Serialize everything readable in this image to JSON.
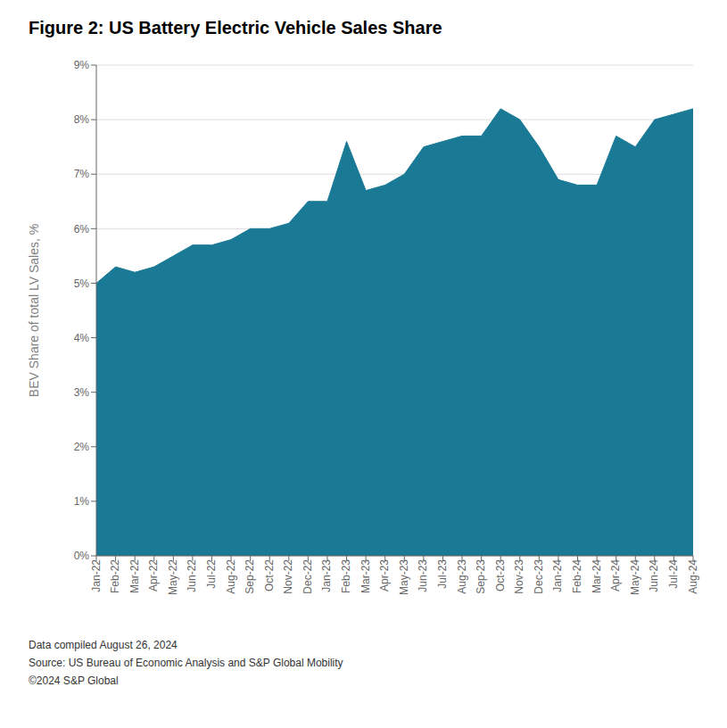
{
  "chart_data": {
    "type": "area",
    "title": "Figure 2: US Battery Electric Vehicle Sales Share",
    "ylabel": "BEV Share of total LV Sales, %",
    "annotations": [
      "Data compiled August 26, 2024",
      "Source: US Bureau of Economic Analysis and S&P Global Mobility",
      "©2024 S&P Global"
    ],
    "categories": [
      "Jan-22",
      "Feb-22",
      "Mar-22",
      "Apr-22",
      "May-22",
      "Jun-22",
      "Jul-22",
      "Aug-22",
      "Sep-22",
      "Oct-22",
      "Nov-22",
      "Dec-22",
      "Jan-23",
      "Feb-23",
      "Mar-23",
      "Apr-23",
      "May-23",
      "Jun-23",
      "Jul-23",
      "Aug-23",
      "Sep-23",
      "Oct-23",
      "Nov-23",
      "Dec-23",
      "Jan-24",
      "Feb-24",
      "Mar-24",
      "Apr-24",
      "May-24",
      "Jun-24",
      "Jul-24",
      "Aug-24"
    ],
    "values": [
      5.0,
      5.3,
      5.2,
      5.3,
      5.5,
      5.7,
      5.7,
      5.8,
      6.0,
      6.0,
      6.1,
      6.5,
      6.5,
      7.6,
      6.7,
      6.8,
      7.0,
      7.5,
      7.6,
      7.7,
      7.7,
      8.2,
      8.0,
      7.5,
      6.9,
      6.8,
      6.8,
      7.7,
      7.5,
      8.0,
      8.1,
      8.2
    ],
    "color": "#1a7a96",
    "ylim": [
      0,
      9
    ],
    "yticks": [
      {
        "value": 0,
        "label": "0%"
      },
      {
        "value": 1,
        "label": "1%"
      },
      {
        "value": 2,
        "label": "2%"
      },
      {
        "value": 3,
        "label": "3%"
      },
      {
        "value": 4,
        "label": "4%"
      },
      {
        "value": 5,
        "label": "5%"
      },
      {
        "value": 6,
        "label": "6%"
      },
      {
        "value": 7,
        "label": "7%"
      },
      {
        "value": 8,
        "label": "8%"
      },
      {
        "value": 9,
        "label": "9%"
      }
    ],
    "grid": true
  }
}
